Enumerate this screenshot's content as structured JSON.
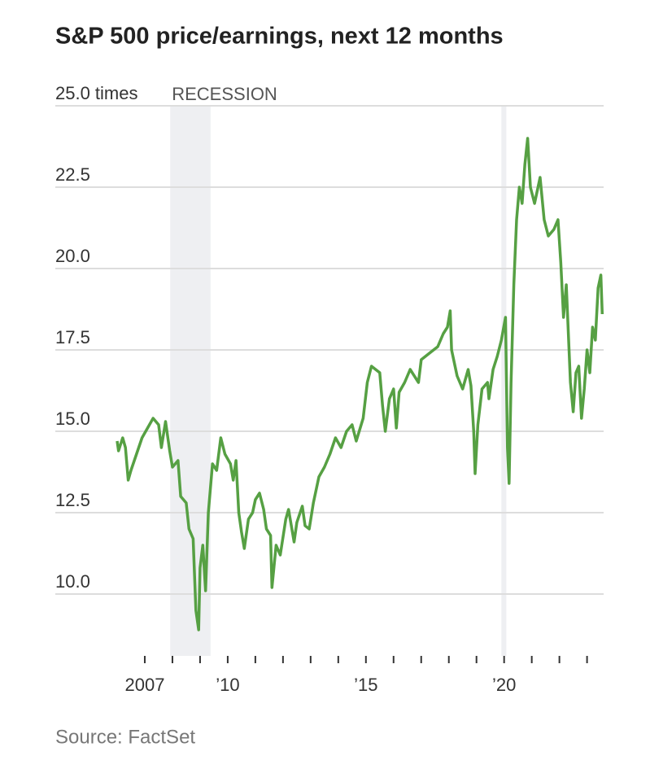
{
  "chart_data": {
    "type": "line",
    "title": "S&P 500 price/earnings, next 12 months",
    "source": "Source: FactSet",
    "recession_label": "RECESSION",
    "recessions": [
      [
        2007.92,
        2009.38
      ],
      [
        2019.9,
        2020.08
      ]
    ],
    "xlim": [
      2006,
      2023.6
    ],
    "ylim": [
      8.5,
      25
    ],
    "yticks": [
      {
        "value": 25,
        "label": "25.0 times"
      },
      22.5,
      {
        "value": 20,
        "label": "20.0"
      },
      17.5,
      {
        "value": 15,
        "label": "15.0"
      },
      12.5,
      {
        "value": 10,
        "label": "10.0"
      }
    ],
    "xticks": [
      {
        "value": 2007,
        "label": "2007"
      },
      {
        "value": 2010,
        "label": "’10"
      },
      {
        "value": 2015,
        "label": "’15"
      },
      {
        "value": 2020,
        "label": "’20"
      }
    ],
    "xminorticks": [
      2008,
      2009,
      2011,
      2012,
      2013,
      2014,
      2016,
      2017,
      2018,
      2019,
      2021,
      2022,
      2023
    ],
    "grid": true,
    "series": [
      {
        "name": "S&P 500 P/E",
        "color": "#56a043",
        "x": [
          2006.0,
          2006.05,
          2006.2,
          2006.3,
          2006.4,
          2006.5,
          2006.7,
          2006.9,
          2007.1,
          2007.3,
          2007.5,
          2007.6,
          2007.75,
          2007.9,
          2008.0,
          2008.2,
          2008.3,
          2008.5,
          2008.6,
          2008.75,
          2008.85,
          2008.95,
          2009.0,
          2009.1,
          2009.2,
          2009.3,
          2009.45,
          2009.6,
          2009.75,
          2009.9,
          2010.1,
          2010.2,
          2010.3,
          2010.4,
          2010.5,
          2010.6,
          2010.75,
          2010.9,
          2011.0,
          2011.15,
          2011.3,
          2011.4,
          2011.55,
          2011.6,
          2011.75,
          2011.9,
          2012.1,
          2012.2,
          2012.4,
          2012.5,
          2012.7,
          2012.8,
          2012.95,
          2013.1,
          2013.3,
          2013.5,
          2013.7,
          2013.9,
          2014.1,
          2014.3,
          2014.5,
          2014.65,
          2014.9,
          2015.05,
          2015.2,
          2015.5,
          2015.6,
          2015.7,
          2015.85,
          2016.0,
          2016.1,
          2016.2,
          2016.4,
          2016.6,
          2016.9,
          2017.0,
          2017.3,
          2017.6,
          2017.8,
          2017.95,
          2018.05,
          2018.1,
          2018.3,
          2018.5,
          2018.7,
          2018.8,
          2018.9,
          2018.95,
          2019.05,
          2019.2,
          2019.4,
          2019.45,
          2019.6,
          2019.75,
          2019.9,
          2020.05,
          2020.12,
          2020.18,
          2020.25,
          2020.35,
          2020.45,
          2020.55,
          2020.65,
          2020.75,
          2020.85,
          2020.95,
          2021.1,
          2021.3,
          2021.45,
          2021.6,
          2021.8,
          2021.95,
          2022.05,
          2022.15,
          2022.25,
          2022.4,
          2022.5,
          2022.6,
          2022.7,
          2022.8,
          2022.9,
          2023.0,
          2023.1,
          2023.2,
          2023.3,
          2023.4,
          2023.5,
          2023.55
        ],
        "values": [
          14.7,
          14.4,
          14.8,
          14.5,
          13.5,
          13.8,
          14.3,
          14.8,
          15.1,
          15.4,
          15.2,
          14.5,
          15.3,
          14.4,
          13.9,
          14.1,
          13.0,
          12.8,
          12.0,
          11.7,
          9.5,
          8.9,
          10.8,
          11.5,
          10.1,
          12.5,
          14.0,
          13.8,
          14.8,
          14.3,
          14.0,
          13.5,
          14.1,
          12.5,
          11.9,
          11.4,
          12.3,
          12.5,
          12.9,
          13.1,
          12.6,
          12.0,
          11.8,
          10.2,
          11.5,
          11.2,
          12.3,
          12.6,
          11.6,
          12.2,
          12.7,
          12.1,
          12.0,
          12.8,
          13.6,
          13.9,
          14.3,
          14.8,
          14.5,
          15.0,
          15.2,
          14.7,
          15.4,
          16.5,
          17.0,
          16.8,
          15.8,
          15.0,
          16.0,
          16.3,
          15.1,
          16.2,
          16.5,
          16.9,
          16.5,
          17.2,
          17.4,
          17.6,
          18.0,
          18.2,
          18.7,
          17.5,
          16.7,
          16.3,
          16.9,
          16.4,
          15.0,
          13.7,
          15.2,
          16.3,
          16.5,
          16.0,
          16.9,
          17.3,
          17.8,
          18.5,
          14.5,
          13.4,
          16.5,
          19.5,
          21.5,
          22.5,
          22.0,
          23.2,
          24.0,
          22.5,
          22.0,
          22.8,
          21.5,
          21.0,
          21.2,
          21.5,
          20.2,
          18.5,
          19.5,
          16.5,
          15.6,
          16.8,
          17.0,
          15.4,
          16.3,
          17.5,
          16.8,
          18.2,
          17.8,
          19.4,
          19.8,
          18.6
        ]
      }
    ]
  }
}
